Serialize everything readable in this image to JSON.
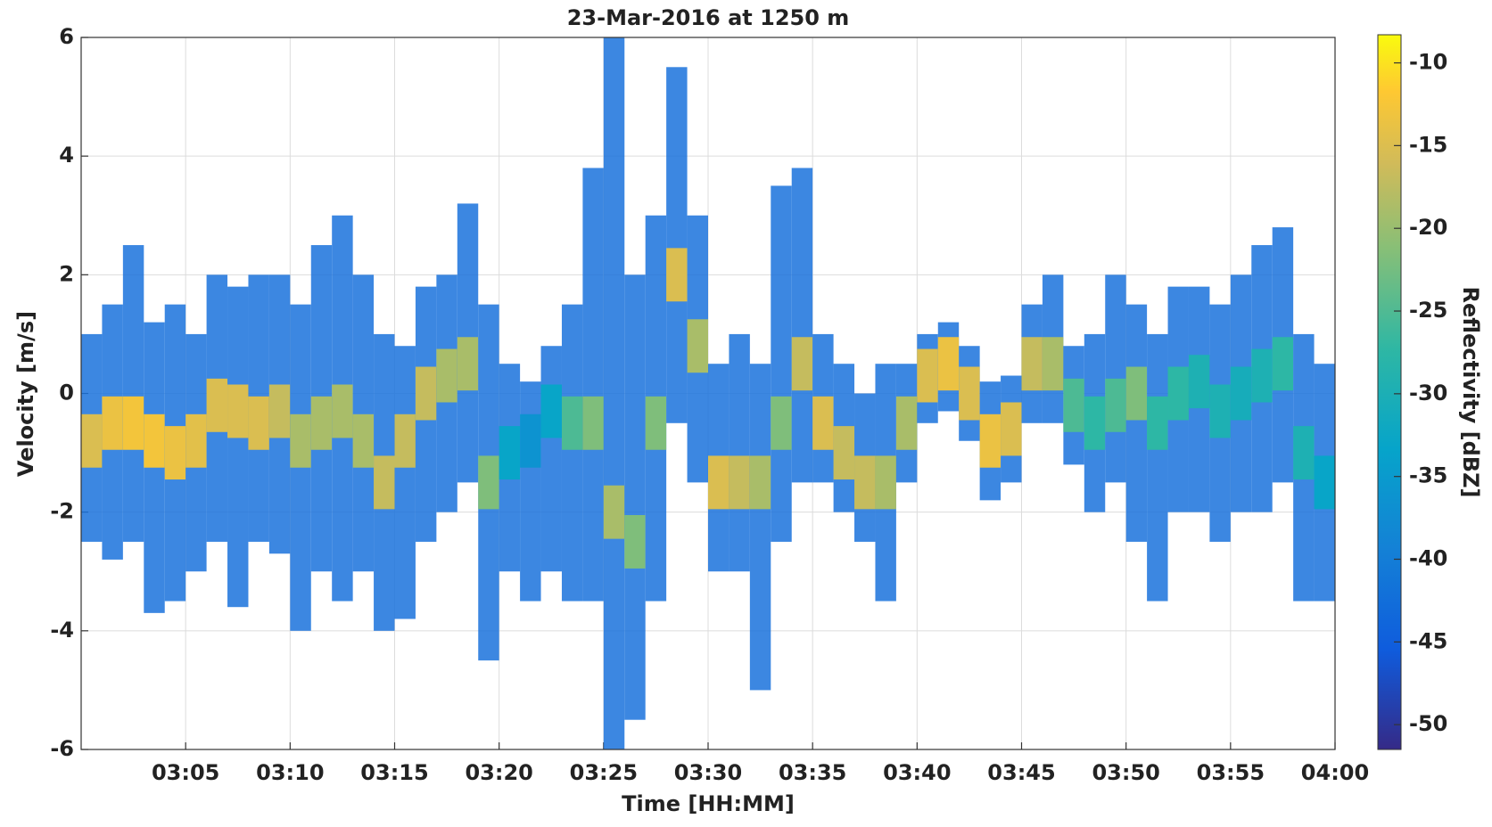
{
  "chart_data": {
    "type": "spectrogram",
    "title": "23-Mar-2016 at 1250 m",
    "xlabel": "Time [HH:MM]",
    "ylabel": "Velocity [m/s]",
    "xlim": [
      0,
      60
    ],
    "xticks": [
      {
        "value": 5,
        "label": "03:05"
      },
      {
        "value": 10,
        "label": "03:10"
      },
      {
        "value": 15,
        "label": "03:15"
      },
      {
        "value": 20,
        "label": "03:20"
      },
      {
        "value": 25,
        "label": "03:25"
      },
      {
        "value": 30,
        "label": "03:30"
      },
      {
        "value": 35,
        "label": "03:35"
      },
      {
        "value": 40,
        "label": "03:40"
      },
      {
        "value": 45,
        "label": "03:45"
      },
      {
        "value": 50,
        "label": "03:50"
      },
      {
        "value": 55,
        "label": "03:55"
      },
      {
        "value": 60,
        "label": "04:00"
      }
    ],
    "ylim": [
      -6,
      6
    ],
    "yticks": [
      -6,
      -4,
      -2,
      0,
      2,
      4,
      6
    ],
    "grid": true,
    "band_color": "#1a72dc",
    "x": [
      0.5,
      1.5,
      2.5,
      3.5,
      4.5,
      5.5,
      6.5,
      7.5,
      8.5,
      9.5,
      10.5,
      11.5,
      12.5,
      13.5,
      14.5,
      15.5,
      16.5,
      17.5,
      18.5,
      19.5,
      20.5,
      21.5,
      22.5,
      23.5,
      24.5,
      25.5,
      26.5,
      27.5,
      28.5,
      29.5,
      30.5,
      31.5,
      32.5,
      33.5,
      34.5,
      35.5,
      36.5,
      37.5,
      38.5,
      39.5,
      40.5,
      41.5,
      42.5,
      43.5,
      44.5,
      45.5,
      46.5,
      47.5,
      48.5,
      49.5,
      50.5,
      51.5,
      52.5,
      53.5,
      54.5,
      55.5,
      56.5,
      57.5,
      58.5,
      59.5
    ],
    "values": [
      -0.8,
      -0.5,
      -0.5,
      -0.8,
      -1.0,
      -0.8,
      -0.2,
      -0.3,
      -0.5,
      -0.3,
      -0.8,
      -0.5,
      -0.3,
      -0.8,
      -1.5,
      -0.8,
      0.0,
      0.3,
      0.5,
      -1.5,
      -1.0,
      -0.8,
      -0.3,
      -0.5,
      -0.5,
      -2.0,
      -2.5,
      -0.5,
      2.0,
      0.8,
      -1.5,
      -1.5,
      -1.5,
      -0.5,
      0.5,
      -0.5,
      -1.0,
      -1.5,
      -1.5,
      -0.5,
      0.3,
      0.5,
      0.0,
      -0.8,
      -0.6,
      0.5,
      0.5,
      -0.2,
      -0.5,
      -0.2,
      0.0,
      -0.5,
      0.0,
      0.2,
      -0.3,
      0.0,
      0.3,
      0.5,
      -1.0,
      -1.5
    ],
    "lower": [
      -2.5,
      -2.8,
      -2.5,
      -3.7,
      -3.5,
      -3.0,
      -2.5,
      -3.6,
      -2.5,
      -2.7,
      -4.0,
      -3.0,
      -3.5,
      -3.0,
      -4.0,
      -3.8,
      -2.5,
      -2.0,
      -1.5,
      -4.5,
      -3.0,
      -3.5,
      -3.0,
      -3.5,
      -3.5,
      -6.0,
      -5.5,
      -3.5,
      -0.5,
      -1.5,
      -3.0,
      -3.0,
      -5.0,
      -2.5,
      -1.5,
      -1.5,
      -2.0,
      -2.5,
      -3.5,
      -1.5,
      -0.5,
      -0.3,
      -0.8,
      -1.8,
      -1.5,
      -0.5,
      -0.5,
      -1.2,
      -2.0,
      -1.5,
      -2.5,
      -3.5,
      -2.0,
      -2.0,
      -2.5,
      -2.0,
      -2.0,
      -1.5,
      -3.5,
      -3.5
    ],
    "upper": [
      1.0,
      1.5,
      2.5,
      1.2,
      1.5,
      1.0,
      2.0,
      1.8,
      2.0,
      2.0,
      1.5,
      2.5,
      3.0,
      2.0,
      1.0,
      0.8,
      1.8,
      2.0,
      3.2,
      1.5,
      0.5,
      0.2,
      0.8,
      1.5,
      3.8,
      6.0,
      2.0,
      3.0,
      5.5,
      3.0,
      0.5,
      1.0,
      0.5,
      3.5,
      3.8,
      1.0,
      0.5,
      0.0,
      0.5,
      0.5,
      1.0,
      1.2,
      0.8,
      0.2,
      0.3,
      1.5,
      2.0,
      0.8,
      1.0,
      2.0,
      1.5,
      1.0,
      1.8,
      1.8,
      1.5,
      2.0,
      2.5,
      2.8,
      1.0,
      0.5
    ],
    "reflectivity": [
      -18,
      -16,
      -15,
      -15,
      -16,
      -17,
      -18,
      -18,
      -18,
      -20,
      -22,
      -22,
      -22,
      -22,
      -20,
      -20,
      -20,
      -22,
      -22,
      -25,
      -35,
      -38,
      -35,
      -28,
      -25,
      -22,
      -25,
      -25,
      -18,
      -22,
      -18,
      -20,
      -22,
      -25,
      -20,
      -18,
      -20,
      -20,
      -22,
      -22,
      -18,
      -16,
      -18,
      -16,
      -18,
      -20,
      -22,
      -28,
      -30,
      -28,
      -25,
      -30,
      -30,
      -32,
      -32,
      -33,
      -32,
      -30,
      -32,
      -35
    ],
    "colorbar": {
      "label": "Reflectivity [dBZ]",
      "clim": [
        -51.5,
        -8.3
      ],
      "ticks": [
        -10,
        -15,
        -20,
        -25,
        -30,
        -35,
        -40,
        -45,
        -50
      ]
    }
  }
}
